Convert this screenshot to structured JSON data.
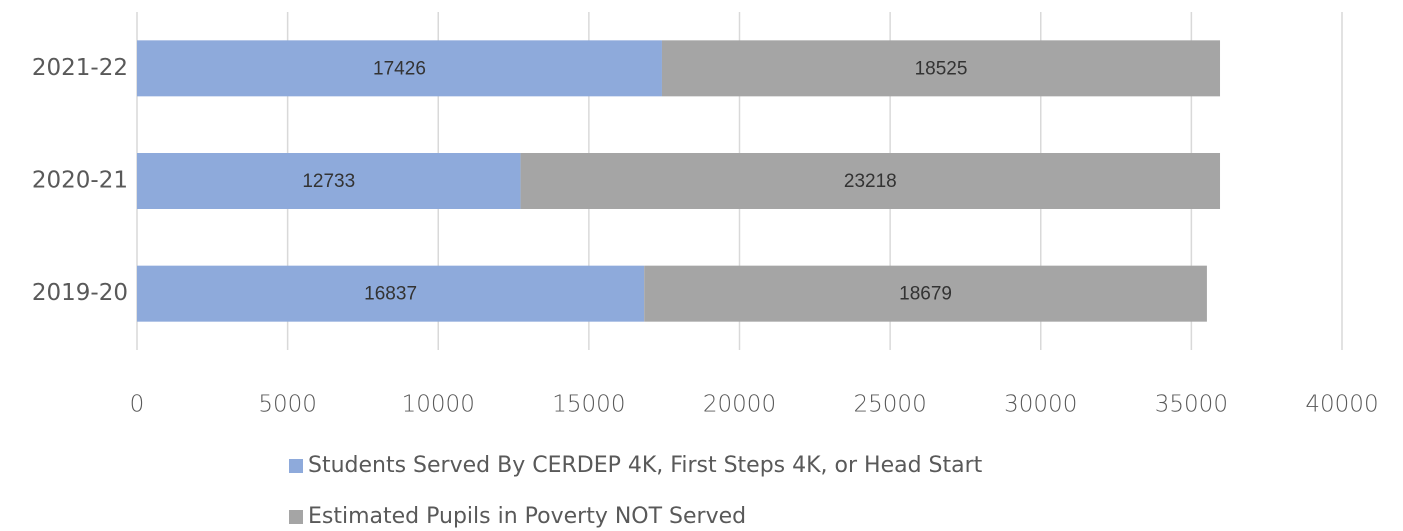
{
  "chart_data": {
    "type": "stacked-horizontal-bar",
    "categories": [
      "2019-20",
      "2020-21",
      "2021-22"
    ],
    "series": [
      {
        "name": "Students Served By CERDEP 4K, First Steps 4K, or Head Start",
        "color": "#8eaadb",
        "values": [
          16837,
          12733,
          17426
        ]
      },
      {
        "name": "Estimated Pupils in Poverty NOT Served",
        "color": "#a5a5a5",
        "values": [
          18679,
          23218,
          18525
        ]
      }
    ],
    "xlim": [
      0,
      40000
    ],
    "xticks": [
      0,
      5000,
      10000,
      15000,
      20000,
      25000,
      30000,
      35000,
      40000
    ],
    "grid": true,
    "legend": "bottom"
  }
}
